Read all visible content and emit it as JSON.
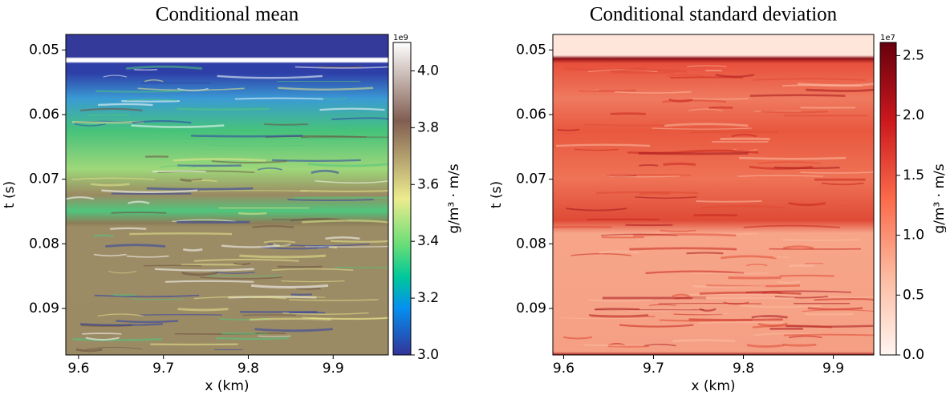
{
  "chart_data": [
    {
      "type": "heatmap",
      "title": "Conditional mean",
      "xlabel": "x (km)",
      "ylabel": "t (s)",
      "xlim": [
        9.585,
        9.965
      ],
      "xticks": [
        9.6,
        9.7,
        9.8,
        9.9
      ],
      "ylim": [
        0.0972,
        0.0476
      ],
      "yticks": [
        0.05,
        0.06,
        0.07,
        0.08,
        0.09
      ],
      "cmap": "terrain",
      "colorbar_label": "g/m³ · m/s",
      "colorbar_offset": "1e9",
      "clim": [
        3.0,
        4.1
      ],
      "cticks": [
        {
          "value": 3,
          "label": "3.0"
        },
        3.2,
        3.4,
        3.6,
        3.8,
        {
          "value": 4,
          "label": "4.0"
        }
      ]
    },
    {
      "type": "heatmap",
      "title": "Conditional standard deviation",
      "xlabel": "x (km)",
      "ylabel": "t (s)",
      "xlim": [
        9.588,
        9.945
      ],
      "xticks": [
        9.6,
        9.7,
        9.8,
        9.9
      ],
      "ylim": [
        0.0972,
        0.0476
      ],
      "yticks": [
        0.05,
        0.06,
        0.07,
        0.08,
        0.09
      ],
      "cmap": "Reds",
      "colorbar_label": "g/m³ · m/s",
      "colorbar_offset": "1e7",
      "clim": [
        0,
        2.61
      ],
      "cticks": [
        {
          "value": 0,
          "label": "0.0"
        },
        0.5,
        {
          "value": 1,
          "label": "1.0"
        },
        1.5,
        {
          "value": 2,
          "label": "2.0"
        },
        2.5
      ]
    }
  ]
}
